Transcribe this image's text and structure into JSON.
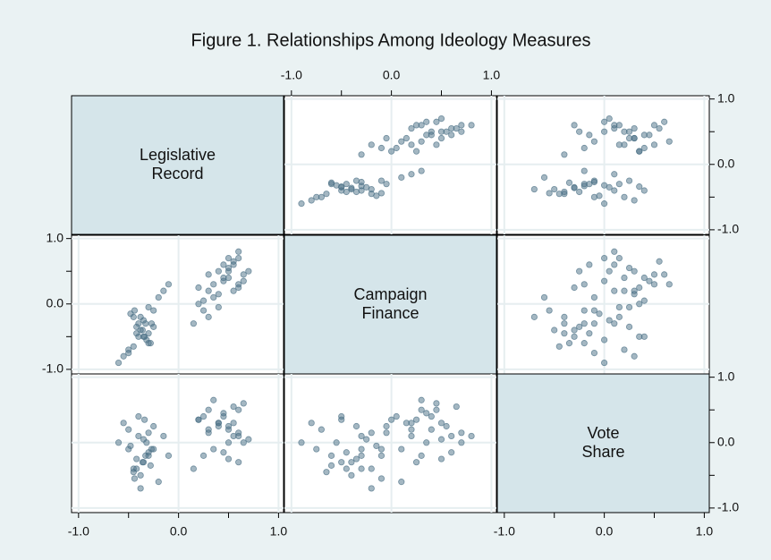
{
  "chart_data": {
    "type": "scatter_matrix",
    "title": "Figure 1. Relationships Among Ideology Measures",
    "point_color": "#4a6f85",
    "diagonal_color": "#d5e5ea",
    "grid": true,
    "variables": [
      {
        "label": [
          "Legislative",
          "Record"
        ],
        "values": [
          -0.35,
          -0.4,
          -0.3,
          -0.45,
          -0.5,
          -0.25,
          -0.38,
          -0.32,
          -0.42,
          -0.55,
          -0.2,
          -0.3,
          -0.35,
          -0.28,
          -0.48,
          -0.4,
          -0.33,
          -0.15,
          -0.45,
          -0.36,
          -0.3,
          -0.5,
          -0.38,
          -0.25,
          -0.42,
          -0.6,
          -0.1,
          -0.34,
          -0.44,
          -0.27,
          0.3,
          0.45,
          0.55,
          0.6,
          0.25,
          0.4,
          0.5,
          0.65,
          0.35,
          0.2,
          0.5,
          0.6,
          0.45,
          0.3,
          0.55,
          0.7,
          0.4,
          0.15,
          0.5,
          0.35,
          0.6,
          0.25,
          0.45,
          0.55,
          0.3,
          0.65,
          0.4,
          0.5,
          0.2,
          0.6
        ]
      },
      {
        "label": [
          "Campaign",
          "Finance"
        ],
        "values": [
          -0.5,
          -0.3,
          -0.6,
          -0.2,
          -0.7,
          -0.1,
          -0.4,
          -0.55,
          -0.35,
          -0.8,
          0.1,
          -0.45,
          -0.25,
          -0.6,
          -0.15,
          -0.5,
          -0.3,
          0.2,
          -0.65,
          -0.4,
          -0.05,
          -0.75,
          -0.2,
          -0.35,
          -0.45,
          -0.9,
          0.3,
          -0.5,
          -0.1,
          -0.3,
          0.2,
          0.4,
          0.6,
          0.3,
          -0.1,
          0.5,
          0.7,
          0.45,
          0.1,
          0.0,
          0.55,
          0.25,
          0.35,
          -0.2,
          0.65,
          0.5,
          0.15,
          -0.3,
          0.4,
          0.3,
          0.8,
          0.05,
          0.6,
          0.2,
          0.45,
          0.35,
          -0.05,
          0.5,
          0.25,
          0.7
        ]
      },
      {
        "label": [
          "Vote",
          "Share"
        ],
        "values": [
          -0.3,
          0.1,
          -0.2,
          -0.4,
          0.2,
          -0.1,
          -0.5,
          0.0,
          -0.25,
          0.3,
          -0.6,
          -0.15,
          0.05,
          -0.35,
          -0.05,
          0.4,
          -0.2,
          0.1,
          -0.45,
          -0.3,
          0.15,
          -0.1,
          -0.7,
          0.25,
          -0.4,
          0.0,
          -0.2,
          0.35,
          -0.55,
          -0.1,
          0.2,
          0.4,
          0.1,
          0.5,
          -0.2,
          0.3,
          0.0,
          0.6,
          -0.1,
          0.35,
          0.25,
          -0.3,
          0.45,
          0.15,
          0.55,
          0.05,
          0.3,
          -0.4,
          0.2,
          0.65,
          0.1,
          0.4,
          -0.15,
          0.3,
          0.5,
          0.0,
          0.25,
          -0.25,
          0.35,
          0.15
        ]
      }
    ],
    "lim": [
      -1.07,
      1.05
    ],
    "ticks": [
      {
        "value": -1,
        "label": "-1.0"
      },
      {
        "value": 0,
        "label": "0.0"
      },
      {
        "value": 1,
        "label": "1.0"
      }
    ],
    "minor_ticks": [
      -0.5,
      0.5
    ]
  }
}
